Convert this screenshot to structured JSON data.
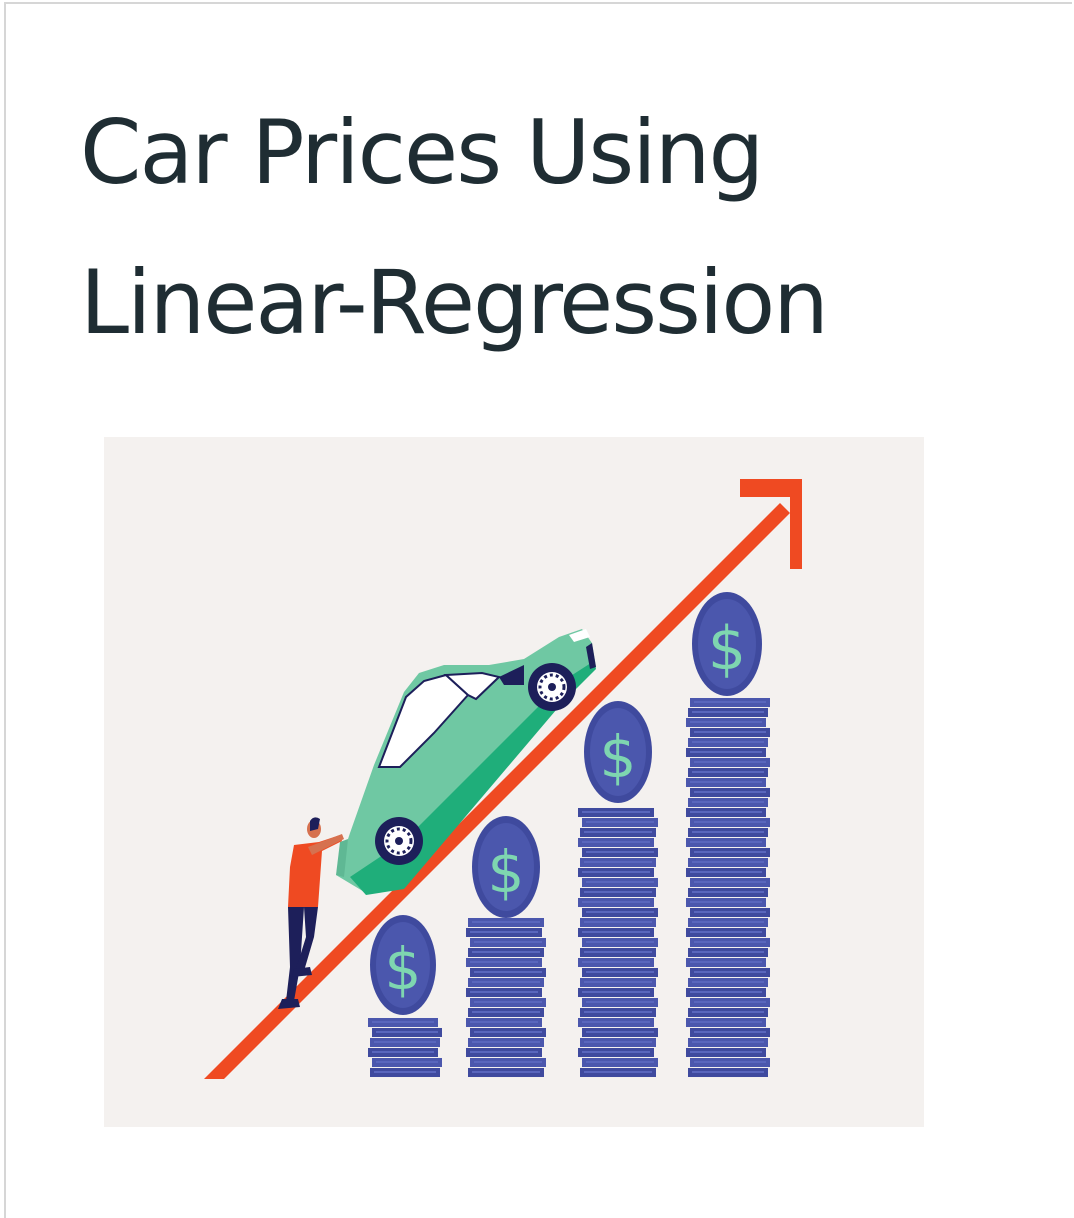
{
  "article": {
    "title_line1": "Car Prices Using",
    "title_line2": "Linear-Regression"
  },
  "hero_image": {
    "icon_name": "car-price-growth-illustration",
    "colors": {
      "background": "#f4f1ef",
      "arrow": "#ef4a22",
      "car": "#6fc8a3",
      "coin": "#3f4a9e",
      "dollar": "#7ed6b0",
      "person_shirt": "#ef4a22",
      "person_pants": "#1d1f5a"
    }
  }
}
